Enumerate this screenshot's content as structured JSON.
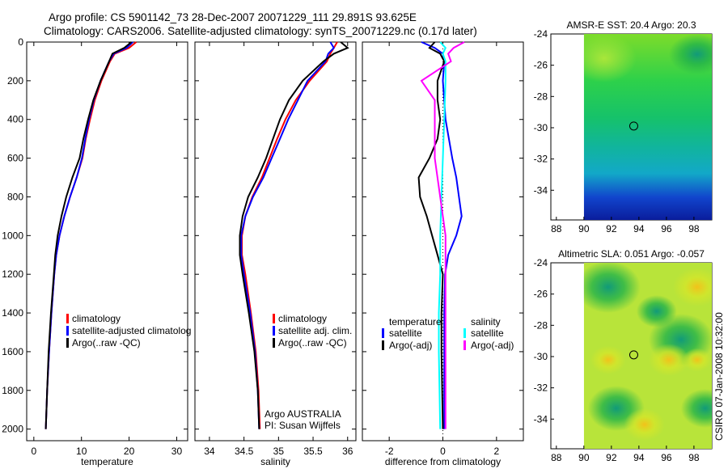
{
  "title_line1": "Argo profile: CS 5901142_73 28-Dec-2007 20071229_111 29.891S 93.625E",
  "title_line2": "Climatology: CARS2006. Satellite-adjusted climatology: synTS_20071229.nc (0.17d later)",
  "footer_stamp": "CSIRO 07-Jan-2008 10:32:00",
  "colors": {
    "climatology": "#ff0000",
    "satellite": "#0000ff",
    "argo": "#000000",
    "sal_satellite": "#00ffff",
    "sal_argo": "#ff00ff"
  },
  "chart_data": [
    {
      "type": "line",
      "id": "temperature",
      "xlabel": "temperature",
      "ylabel": "",
      "xlim": [
        -1.5,
        32.3
      ],
      "ylim": [
        0,
        2060
      ],
      "y_reversed": true,
      "xticks": [
        0,
        10,
        20,
        30
      ],
      "yticks": [
        0,
        200,
        400,
        600,
        800,
        1000,
        1200,
        1400,
        1600,
        1800,
        2000
      ],
      "legend": [
        "climatology",
        "satellite-adjusted climatolog",
        "Argo(..raw -QC)"
      ],
      "series": [
        {
          "name": "climatology",
          "color": "#ff0000",
          "depth": [
            0,
            30,
            60,
            100,
            200,
            300,
            400,
            500,
            600,
            700,
            800,
            900,
            1000,
            1100,
            1200,
            1400,
            1600,
            1800,
            2000
          ],
          "values": [
            21.5,
            20,
            17,
            16,
            14.2,
            12.8,
            11.8,
            10.9,
            10.2,
            9,
            7.6,
            6.4,
            5.4,
            4.7,
            4.3,
            3.7,
            3.2,
            2.8,
            2.5
          ]
        },
        {
          "name": "satellite-adjusted climatology",
          "color": "#0000ff",
          "depth": [
            0,
            30,
            60,
            100,
            200,
            300,
            400,
            500,
            600,
            700,
            800,
            900,
            1000,
            1100,
            1200,
            1400,
            1600,
            1800,
            2000
          ],
          "values": [
            20.8,
            19.5,
            16.8,
            15.8,
            14,
            12.6,
            11.6,
            10.8,
            10.1,
            9,
            7.6,
            6.4,
            5.4,
            4.7,
            4.3,
            3.7,
            3.2,
            2.8,
            2.5
          ]
        },
        {
          "name": "Argo(..raw -QC)",
          "color": "#000000",
          "depth": [
            0,
            30,
            60,
            100,
            200,
            300,
            400,
            500,
            600,
            700,
            800,
            900,
            1000,
            1100,
            1200,
            1400,
            1600,
            1800,
            2000
          ],
          "values": [
            20.5,
            19,
            16.5,
            15.8,
            14,
            12.5,
            11.4,
            10.4,
            9.6,
            8.1,
            6.8,
            5.8,
            5.0,
            4.5,
            4.2,
            3.6,
            3.1,
            2.8,
            2.5
          ]
        }
      ]
    },
    {
      "type": "line",
      "id": "salinity",
      "xlabel": "salinity",
      "xlim": [
        33.79,
        36.12
      ],
      "ylim": [
        0,
        2060
      ],
      "y_reversed": true,
      "xticks": [
        34,
        34.5,
        35,
        35.5,
        36
      ],
      "legend": [
        "climatology",
        "satellite adj. clim.",
        "Argo(..raw -QC)"
      ],
      "annotation": [
        "Argo AUSTRALIA",
        "PI: Susan Wijffels"
      ],
      "series": [
        {
          "name": "climatology",
          "color": "#ff0000",
          "depth": [
            0,
            30,
            60,
            100,
            200,
            300,
            400,
            500,
            600,
            700,
            800,
            900,
            1000,
            1100,
            1200,
            1400,
            1600,
            1800,
            2000
          ],
          "values": [
            35.85,
            35.8,
            35.75,
            35.7,
            35.45,
            35.25,
            35.1,
            34.98,
            34.87,
            34.76,
            34.62,
            34.52,
            34.47,
            34.47,
            34.52,
            34.6,
            34.67,
            34.71,
            34.73
          ]
        },
        {
          "name": "satellite adj. clim.",
          "color": "#0000ff",
          "depth": [
            0,
            30,
            60,
            100,
            200,
            300,
            400,
            500,
            600,
            700,
            800,
            900,
            1000,
            1100,
            1200,
            1400,
            1600,
            1800,
            2000
          ],
          "values": [
            35.75,
            35.8,
            35.72,
            35.68,
            35.42,
            35.28,
            35.14,
            35.02,
            34.9,
            34.78,
            34.63,
            34.52,
            34.46,
            34.46,
            34.5,
            34.59,
            34.66,
            34.7,
            34.72
          ]
        },
        {
          "name": "Argo(..raw -QC)",
          "color": "#000000",
          "depth": [
            0,
            30,
            60,
            100,
            200,
            300,
            400,
            500,
            600,
            700,
            800,
            900,
            1000,
            1100,
            1200,
            1400,
            1600,
            1800,
            2000
          ],
          "values": [
            35.9,
            36.0,
            35.8,
            35.65,
            35.35,
            35.15,
            35.02,
            34.92,
            34.82,
            34.7,
            34.56,
            34.48,
            34.44,
            34.44,
            34.48,
            34.57,
            34.65,
            34.7,
            34.72
          ]
        }
      ]
    },
    {
      "type": "line",
      "id": "difference",
      "xlabel": "difference from climatology",
      "xlim": [
        -3,
        3
      ],
      "ylim": [
        0,
        2060
      ],
      "y_reversed": true,
      "xticks": [
        -2,
        0,
        2
      ],
      "legend": {
        "temperature_heading": "temperature",
        "salinity_heading": "salinity",
        "items": [
          "satellite",
          "Argo(-adj)",
          "satellite",
          "Argo(-adj)"
        ]
      },
      "series": [
        {
          "name": "temperature satellite",
          "color": "#0000ff",
          "depth": [
            0,
            30,
            60,
            100,
            200,
            400,
            600,
            700,
            800,
            900,
            1000,
            1100,
            1200,
            1400,
            1600,
            2000
          ],
          "values": [
            -0.8,
            -0.3,
            0.0,
            0.05,
            0.0,
            0.1,
            0.35,
            0.5,
            0.6,
            0.7,
            0.5,
            0.2,
            0.08,
            0.05,
            0.05,
            0.05
          ]
        },
        {
          "name": "temperature Argo(-adj)",
          "color": "#000000",
          "depth": [
            0,
            30,
            60,
            100,
            200,
            300,
            400,
            500,
            600,
            700,
            800,
            900,
            1000,
            1100,
            1200,
            1400,
            1600,
            2000
          ],
          "values": [
            -0.3,
            -0.5,
            -0.1,
            0.05,
            -0.2,
            -0.2,
            -0.1,
            -0.2,
            -0.5,
            -0.9,
            -0.85,
            -0.6,
            -0.4,
            -0.2,
            0.0,
            -0.05,
            -0.05,
            0.0
          ]
        },
        {
          "name": "salinity satellite",
          "color": "#00ffff",
          "depth": [
            0,
            30,
            60,
            100,
            200,
            400,
            600,
            800,
            1000,
            1200,
            1400,
            1600,
            2000
          ],
          "values": [
            -0.1,
            0.1,
            0.0,
            0.1,
            0.1,
            0.05,
            0.0,
            -0.05,
            -0.1,
            -0.1,
            -0.15,
            -0.15,
            -0.1
          ]
        },
        {
          "name": "salinity Argo(-adj)",
          "color": "#ff00ff",
          "depth": [
            0,
            30,
            60,
            100,
            200,
            300,
            400,
            600,
            800,
            1000,
            1200,
            1400,
            1600,
            2000
          ],
          "values": [
            0.8,
            0.4,
            0.2,
            0.3,
            -0.8,
            -0.3,
            -0.3,
            -0.3,
            -0.1,
            0.1,
            0.1,
            0.1,
            0.1,
            0.1
          ]
        }
      ]
    },
    {
      "type": "heatmap",
      "id": "sst_map",
      "title": "AMSR-E SST: 20.4 Argo: 20.3",
      "xticks": [
        88,
        90,
        92,
        94,
        96,
        98
      ],
      "yticks": [
        -24,
        -26,
        -28,
        -30,
        -32,
        -34
      ],
      "xlim": [
        87.6,
        99.3
      ],
      "ylim": [
        -35.9,
        -24
      ],
      "marker": [
        93.625,
        -29.891
      ]
    },
    {
      "type": "heatmap",
      "id": "sla_map",
      "title": "Altimetric SLA: 0.051 Argo: -0.057",
      "xticks": [
        88,
        90,
        92,
        94,
        96,
        98
      ],
      "yticks": [
        -24,
        -26,
        -28,
        -30,
        -32,
        -34
      ],
      "xlim": [
        87.6,
        99.3
      ],
      "ylim": [
        -35.9,
        -24
      ],
      "marker": [
        93.625,
        -29.891
      ]
    }
  ]
}
